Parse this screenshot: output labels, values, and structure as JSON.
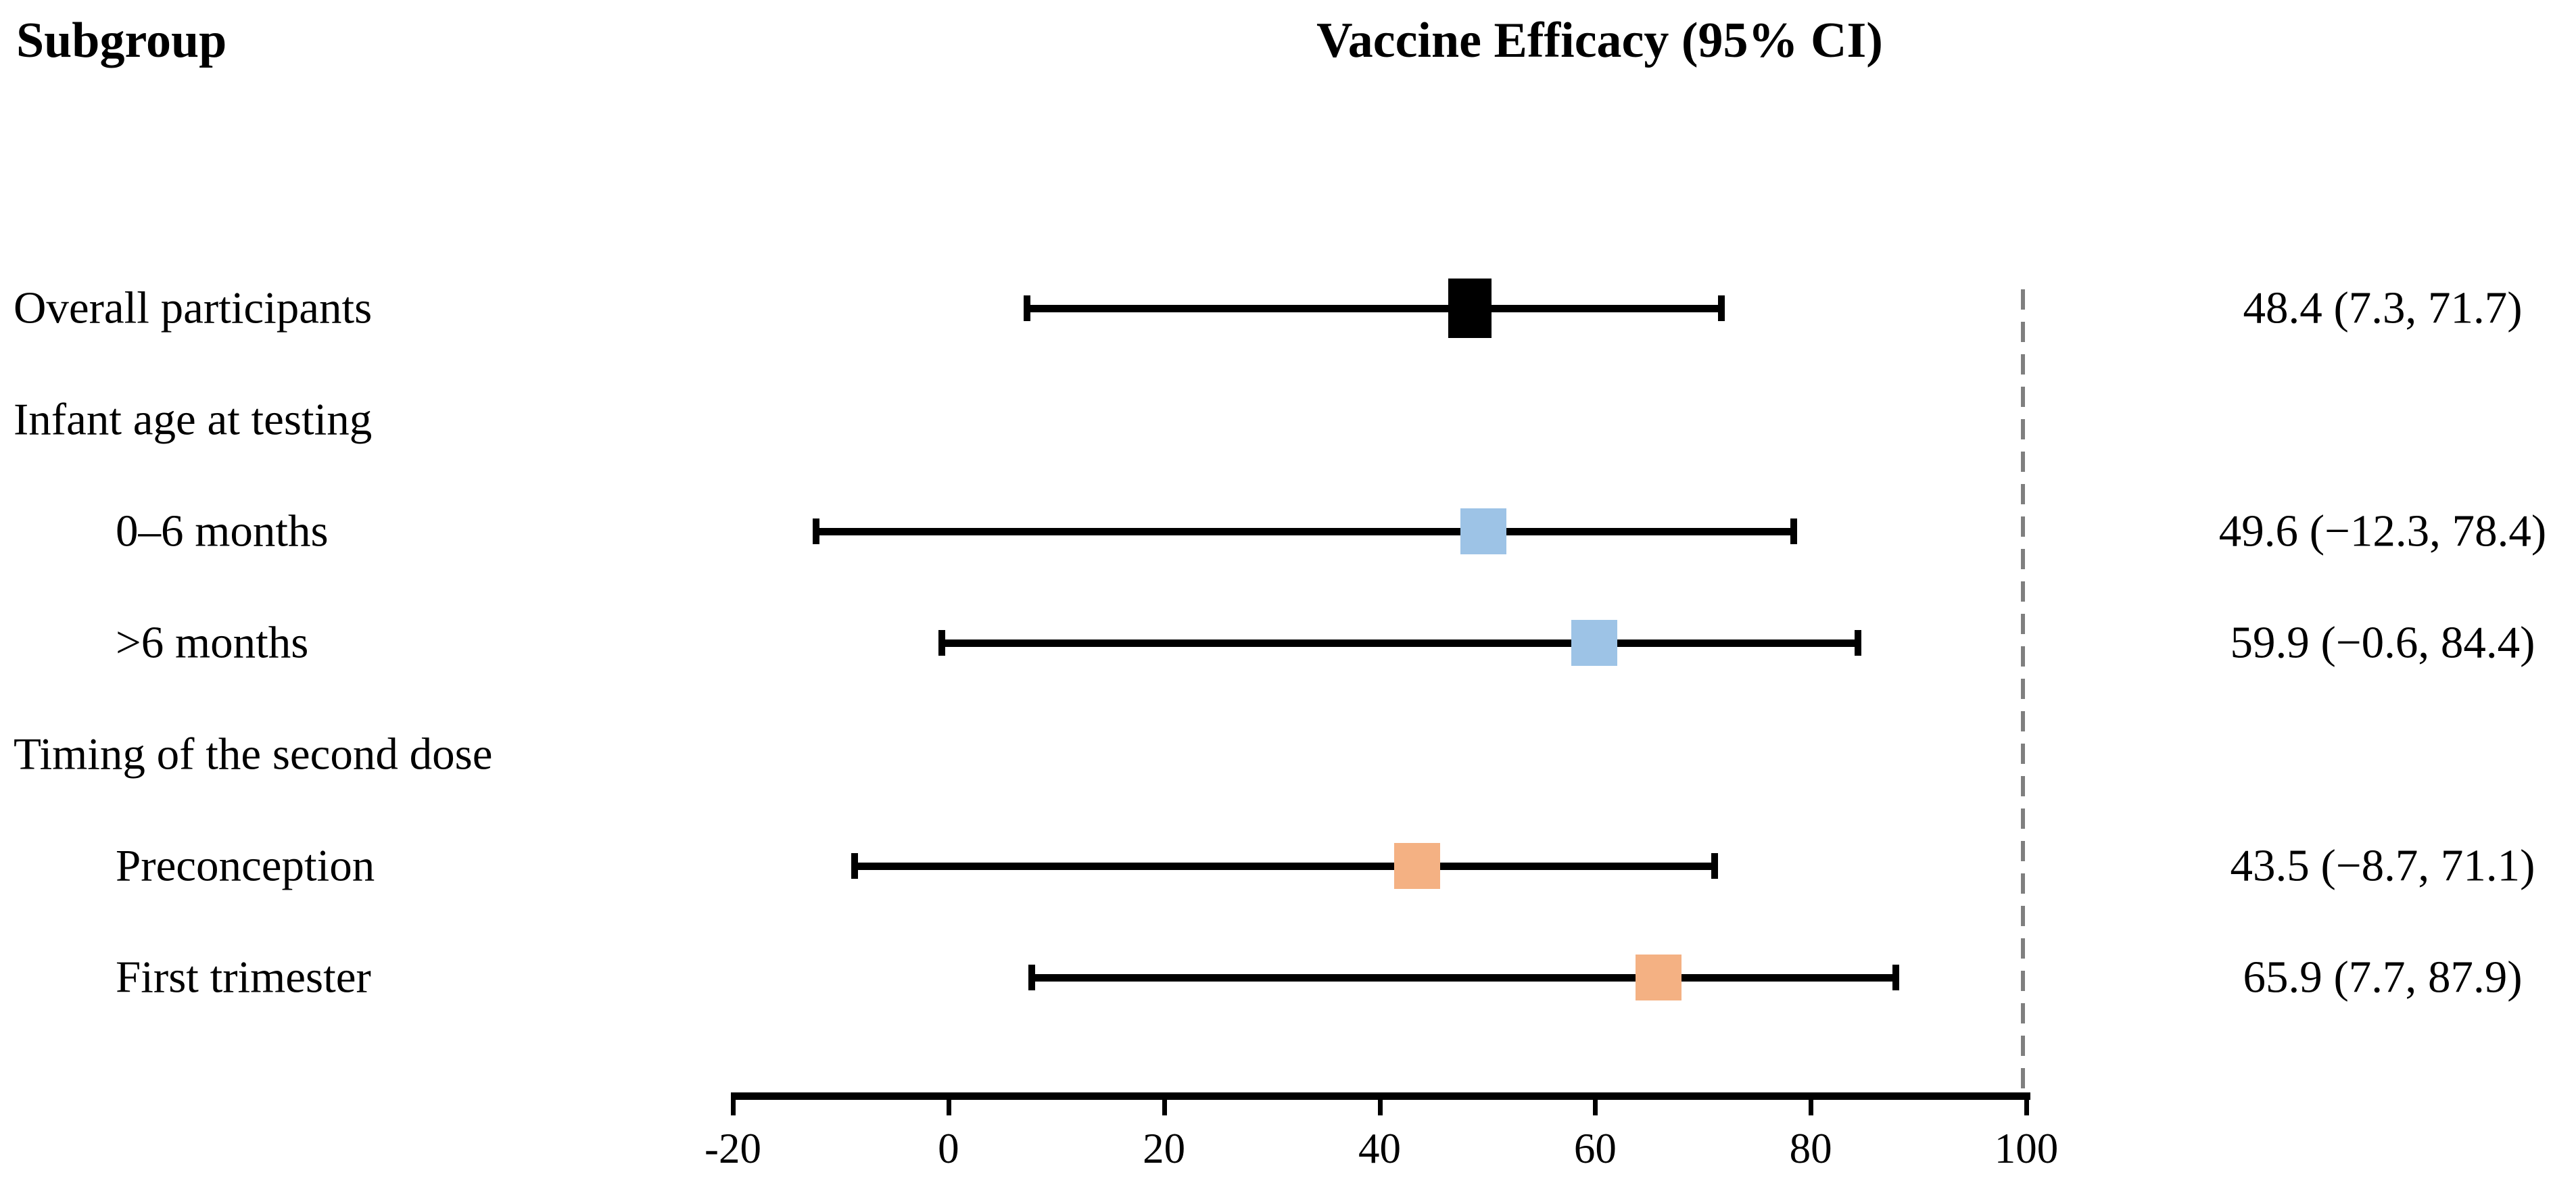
{
  "chart_data": {
    "type": "forest",
    "title": "Vaccine Efficacy (95% CI)",
    "left_column_header": "Subgroup",
    "grid": false,
    "legend": "none",
    "axis": {
      "min": -20,
      "max": 100,
      "ticks": [
        -20,
        0,
        20,
        40,
        60,
        80,
        100
      ],
      "tick_labels": [
        "-20",
        "0",
        "20",
        "40",
        "60",
        "80",
        "100"
      ]
    },
    "reference_line": {
      "value": 100,
      "style": "dashed",
      "color": "#7F7F7F"
    },
    "marker_colors": {
      "overall": "#000000",
      "infant_age": "#9DC3E6",
      "dose_timing": "#F4B183"
    },
    "rows": [
      {
        "label": "Overall participants",
        "indent": 0,
        "header": false,
        "emphasis": true,
        "estimate": 48.4,
        "lower": 7.3,
        "upper": 71.7,
        "value_text": "48.4 (7.3, 71.7)",
        "marker_color": "#000000"
      },
      {
        "label": "Infant age at testing",
        "indent": 0,
        "header": true
      },
      {
        "label": "0–6 months",
        "indent": 1,
        "header": false,
        "estimate": 49.6,
        "lower": -12.3,
        "upper": 78.4,
        "value_text": "49.6 (−12.3, 78.4)",
        "marker_color": "#9DC3E6"
      },
      {
        "label": ">6 months",
        "indent": 1,
        "header": false,
        "estimate": 59.9,
        "lower": -0.6,
        "upper": 84.4,
        "value_text": "59.9 (−0.6, 84.4)",
        "marker_color": "#9DC3E6"
      },
      {
        "label": "Timing of the second dose",
        "indent": 0,
        "header": true
      },
      {
        "label": "Preconception",
        "indent": 1,
        "header": false,
        "estimate": 43.5,
        "lower": -8.7,
        "upper": 71.1,
        "value_text": "43.5 (−8.7, 71.1)",
        "marker_color": "#F4B183"
      },
      {
        "label": "First trimester",
        "indent": 1,
        "header": false,
        "estimate": 65.9,
        "lower": 7.7,
        "upper": 87.9,
        "value_text": "65.9 (7.7, 87.9)",
        "marker_color": "#F4B183"
      }
    ]
  }
}
